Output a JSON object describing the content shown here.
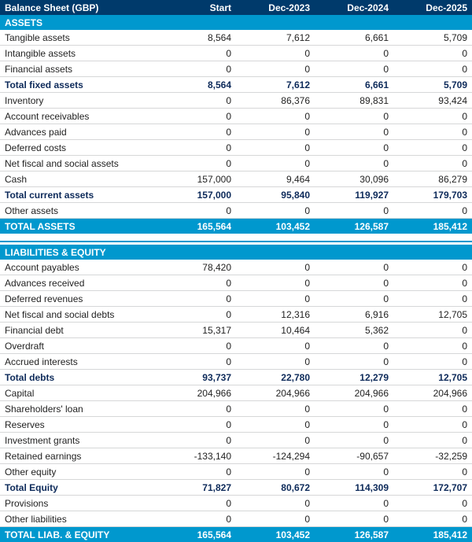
{
  "columns": [
    "Balance Sheet (GBP)",
    "Start",
    "Dec-2023",
    "Dec-2024",
    "Dec-2025"
  ],
  "rows": [
    {
      "type": "section",
      "label": "ASSETS"
    },
    {
      "type": "data",
      "label": "Tangible assets",
      "v": [
        "8,564",
        "7,612",
        "6,661",
        "5,709"
      ]
    },
    {
      "type": "data",
      "label": "Intangible assets",
      "v": [
        "0",
        "0",
        "0",
        "0"
      ]
    },
    {
      "type": "data",
      "label": "Financial assets",
      "v": [
        "0",
        "0",
        "0",
        "0"
      ]
    },
    {
      "type": "bold",
      "label": "Total fixed assets",
      "v": [
        "8,564",
        "7,612",
        "6,661",
        "5,709"
      ]
    },
    {
      "type": "data",
      "label": "Inventory",
      "v": [
        "0",
        "86,376",
        "89,831",
        "93,424"
      ]
    },
    {
      "type": "data",
      "label": "Account receivables",
      "v": [
        "0",
        "0",
        "0",
        "0"
      ]
    },
    {
      "type": "data",
      "label": "Advances paid",
      "v": [
        "0",
        "0",
        "0",
        "0"
      ]
    },
    {
      "type": "data",
      "label": "Deferred costs",
      "v": [
        "0",
        "0",
        "0",
        "0"
      ]
    },
    {
      "type": "data",
      "label": "Net fiscal and social assets",
      "v": [
        "0",
        "0",
        "0",
        "0"
      ]
    },
    {
      "type": "data",
      "label": "Cash",
      "v": [
        "157,000",
        "9,464",
        "30,096",
        "86,279"
      ]
    },
    {
      "type": "bold",
      "label": "Total current assets",
      "v": [
        "157,000",
        "95,840",
        "119,927",
        "179,703"
      ]
    },
    {
      "type": "data",
      "label": "Other assets",
      "v": [
        "0",
        "0",
        "0",
        "0"
      ]
    },
    {
      "type": "total",
      "label": "TOTAL ASSETS",
      "v": [
        "165,564",
        "103,452",
        "126,587",
        "185,412"
      ]
    },
    {
      "type": "sep"
    },
    {
      "type": "section",
      "label": "LIABILITIES & EQUITY"
    },
    {
      "type": "data",
      "label": "Account payables",
      "v": [
        "78,420",
        "0",
        "0",
        "0"
      ]
    },
    {
      "type": "data",
      "label": "Advances received",
      "v": [
        "0",
        "0",
        "0",
        "0"
      ]
    },
    {
      "type": "data",
      "label": "Deferred revenues",
      "v": [
        "0",
        "0",
        "0",
        "0"
      ]
    },
    {
      "type": "data",
      "label": "Net fiscal and social debts",
      "v": [
        "0",
        "12,316",
        "6,916",
        "12,705"
      ]
    },
    {
      "type": "data",
      "label": "Financial debt",
      "v": [
        "15,317",
        "10,464",
        "5,362",
        "0"
      ]
    },
    {
      "type": "data",
      "label": "Overdraft",
      "v": [
        "0",
        "0",
        "0",
        "0"
      ]
    },
    {
      "type": "data",
      "label": "Accrued interests",
      "v": [
        "0",
        "0",
        "0",
        "0"
      ]
    },
    {
      "type": "bold",
      "label": "Total debts",
      "v": [
        "93,737",
        "22,780",
        "12,279",
        "12,705"
      ]
    },
    {
      "type": "data",
      "label": "Capital",
      "v": [
        "204,966",
        "204,966",
        "204,966",
        "204,966"
      ]
    },
    {
      "type": "data",
      "label": "Shareholders' loan",
      "v": [
        "0",
        "0",
        "0",
        "0"
      ]
    },
    {
      "type": "data",
      "label": "Reserves",
      "v": [
        "0",
        "0",
        "0",
        "0"
      ]
    },
    {
      "type": "data",
      "label": "Investment grants",
      "v": [
        "0",
        "0",
        "0",
        "0"
      ]
    },
    {
      "type": "data",
      "label": "Retained earnings",
      "v": [
        "-133,140",
        "-124,294",
        "-90,657",
        "-32,259"
      ]
    },
    {
      "type": "data",
      "label": "Other equity",
      "v": [
        "0",
        "0",
        "0",
        "0"
      ]
    },
    {
      "type": "bold",
      "label": "Total Equity",
      "v": [
        "71,827",
        "80,672",
        "114,309",
        "172,707"
      ]
    },
    {
      "type": "data",
      "label": "Provisions",
      "v": [
        "0",
        "0",
        "0",
        "0"
      ]
    },
    {
      "type": "data",
      "label": "Other liabilities",
      "v": [
        "0",
        "0",
        "0",
        "0"
      ]
    },
    {
      "type": "total",
      "label": "TOTAL LIAB. & EQUITY",
      "v": [
        "165,564",
        "103,452",
        "126,587",
        "185,412"
      ]
    }
  ]
}
